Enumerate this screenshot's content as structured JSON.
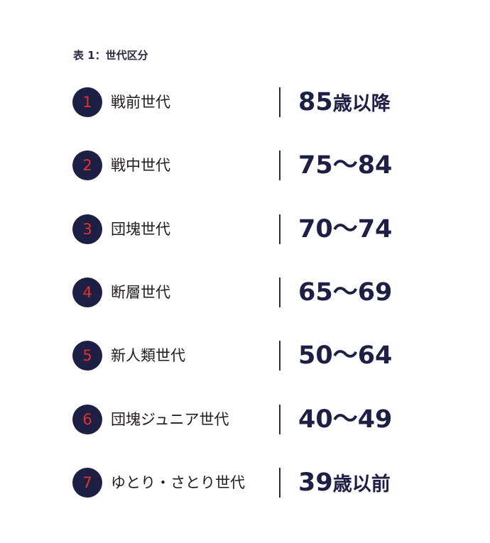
{
  "caption": "表 1：世代区分",
  "colors": {
    "circle": "#1e1f44",
    "number": "#e2322b",
    "value": "#1e1f44"
  },
  "rows": [
    {
      "num": "1",
      "label": "戦前世代",
      "value": "85",
      "suffix": "歳以降"
    },
    {
      "num": "2",
      "label": "戦中世代",
      "value": "75〜84",
      "suffix": ""
    },
    {
      "num": "3",
      "label": "団塊世代",
      "value": "70〜74",
      "suffix": ""
    },
    {
      "num": "4",
      "label": "断層世代",
      "value": "65〜69",
      "suffix": ""
    },
    {
      "num": "5",
      "label": "新人類世代",
      "value": "50〜64",
      "suffix": ""
    },
    {
      "num": "6",
      "label": "団塊ジュニア世代",
      "value": "40〜49",
      "suffix": ""
    },
    {
      "num": "7",
      "label": "ゆとり・さとり世代",
      "value": "39",
      "suffix": "歳以前"
    }
  ]
}
